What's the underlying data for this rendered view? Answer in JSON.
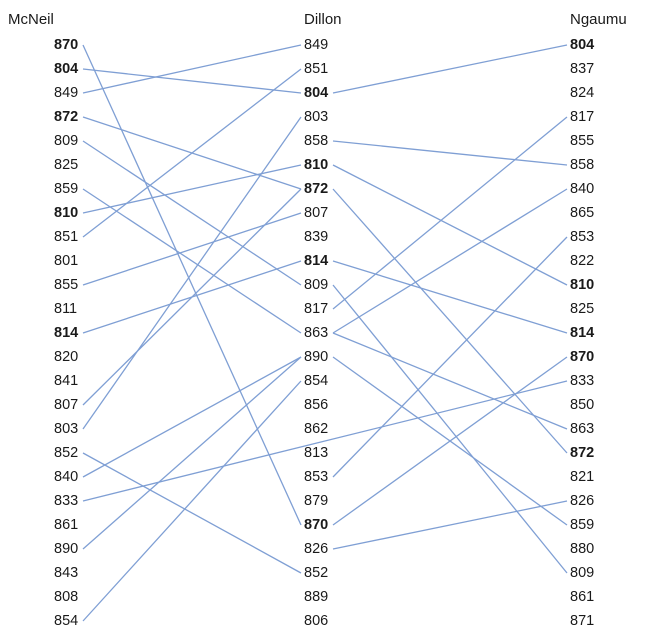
{
  "columns": [
    {
      "name": "McNeil",
      "values": [
        "870",
        "804",
        "849",
        "872",
        "809",
        "825",
        "859",
        "810",
        "851",
        "801",
        "855",
        "811",
        "814",
        "820",
        "841",
        "807",
        "803",
        "852",
        "840",
        "833",
        "861",
        "890",
        "843",
        "808",
        "854"
      ]
    },
    {
      "name": "Dillon",
      "values": [
        "849",
        "851",
        "804",
        "803",
        "858",
        "810",
        "872",
        "807",
        "839",
        "814",
        "809",
        "817",
        "863",
        "890",
        "854",
        "856",
        "862",
        "813",
        "853",
        "879",
        "870",
        "826",
        "852",
        "889",
        "806"
      ]
    },
    {
      "name": "Ngaumu",
      "values": [
        "804",
        "837",
        "824",
        "817",
        "855",
        "858",
        "840",
        "865",
        "853",
        "822",
        "810",
        "825",
        "814",
        "870",
        "833",
        "850",
        "863",
        "872",
        "821",
        "826",
        "859",
        "880",
        "809",
        "861",
        "871"
      ]
    }
  ],
  "bold_values": [
    "870",
    "804",
    "872",
    "810",
    "814"
  ],
  "line_color": "#7f9fd4",
  "links": [
    {
      "from_col": 0,
      "from_row": 0,
      "to_col": 1,
      "to_row": 20
    },
    {
      "from_col": 0,
      "from_row": 1,
      "to_col": 1,
      "to_row": 2
    },
    {
      "from_col": 0,
      "from_row": 2,
      "to_col": 1,
      "to_row": 0
    },
    {
      "from_col": 0,
      "from_row": 3,
      "to_col": 1,
      "to_row": 6
    },
    {
      "from_col": 0,
      "from_row": 4,
      "to_col": 1,
      "to_row": 10
    },
    {
      "from_col": 0,
      "from_row": 6,
      "to_col": 1,
      "to_row": 12
    },
    {
      "from_col": 0,
      "from_row": 7,
      "to_col": 1,
      "to_row": 5
    },
    {
      "from_col": 0,
      "from_row": 8,
      "to_col": 1,
      "to_row": 1
    },
    {
      "from_col": 0,
      "from_row": 10,
      "to_col": 1,
      "to_row": 7
    },
    {
      "from_col": 0,
      "from_row": 12,
      "to_col": 1,
      "to_row": 9
    },
    {
      "from_col": 0,
      "from_row": 15,
      "to_col": 1,
      "to_row": 6
    },
    {
      "from_col": 0,
      "from_row": 16,
      "to_col": 1,
      "to_row": 3
    },
    {
      "from_col": 0,
      "from_row": 17,
      "to_col": 1,
      "to_row": 22
    },
    {
      "from_col": 0,
      "from_row": 18,
      "to_col": 1,
      "to_row": 13
    },
    {
      "from_col": 0,
      "from_row": 19,
      "to_col": 2,
      "to_row": 14
    },
    {
      "from_col": 0,
      "from_row": 21,
      "to_col": 1,
      "to_row": 13
    },
    {
      "from_col": 0,
      "from_row": 24,
      "to_col": 1,
      "to_row": 14
    },
    {
      "from_col": 1,
      "from_row": 2,
      "to_col": 2,
      "to_row": 0
    },
    {
      "from_col": 1,
      "from_row": 4,
      "to_col": 2,
      "to_row": 5
    },
    {
      "from_col": 1,
      "from_row": 5,
      "to_col": 2,
      "to_row": 10
    },
    {
      "from_col": 1,
      "from_row": 6,
      "to_col": 2,
      "to_row": 17
    },
    {
      "from_col": 1,
      "from_row": 9,
      "to_col": 2,
      "to_row": 12
    },
    {
      "from_col": 1,
      "from_row": 10,
      "to_col": 2,
      "to_row": 22
    },
    {
      "from_col": 1,
      "from_row": 11,
      "to_col": 2,
      "to_row": 3
    },
    {
      "from_col": 1,
      "from_row": 12,
      "to_col": 2,
      "to_row": 6
    },
    {
      "from_col": 1,
      "from_row": 12,
      "to_col": 2,
      "to_row": 16
    },
    {
      "from_col": 1,
      "from_row": 13,
      "to_col": 2,
      "to_row": 20
    },
    {
      "from_col": 1,
      "from_row": 18,
      "to_col": 2,
      "to_row": 8
    },
    {
      "from_col": 1,
      "from_row": 20,
      "to_col": 2,
      "to_row": 13
    },
    {
      "from_col": 1,
      "from_row": 21,
      "to_col": 2,
      "to_row": 19
    }
  ]
}
